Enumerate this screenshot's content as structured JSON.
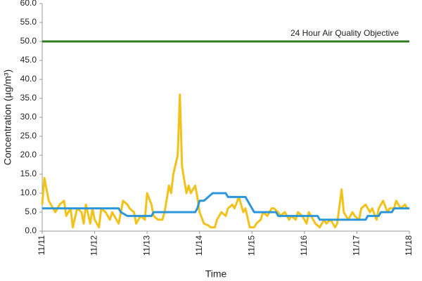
{
  "chart_data": {
    "type": "line",
    "xlabel": "Time",
    "ylabel": "Concentration (µg/m³)",
    "annotation": "24 Hour Air Quality Objective",
    "xlim": [
      0,
      168
    ],
    "xticks": [
      {
        "value": 0,
        "label": "11/11"
      },
      {
        "value": 24,
        "label": "11/12"
      },
      {
        "value": 48,
        "label": "11/13"
      },
      {
        "value": 72,
        "label": "11/14"
      },
      {
        "value": 96,
        "label": "11/15"
      },
      {
        "value": 120,
        "label": "11/16"
      },
      {
        "value": 144,
        "label": "11/17"
      },
      {
        "value": 168,
        "label": "11/18"
      }
    ],
    "ylim": [
      0,
      60
    ],
    "yticks": [
      {
        "value": 0,
        "label": "0.0"
      },
      {
        "value": 5,
        "label": "5.0"
      },
      {
        "value": 10,
        "label": "10.0"
      },
      {
        "value": 15,
        "label": "15.0"
      },
      {
        "value": 20,
        "label": "20.0"
      },
      {
        "value": 25,
        "label": "25.0"
      },
      {
        "value": 30,
        "label": "30.0"
      },
      {
        "value": 35,
        "label": "35.0"
      },
      {
        "value": 40,
        "label": "40.0"
      },
      {
        "value": 45,
        "label": "45.0"
      },
      {
        "value": 50,
        "label": "50.0"
      },
      {
        "value": 55,
        "label": "55.0"
      },
      {
        "value": 60,
        "label": "60.0"
      }
    ],
    "series": [
      {
        "color": "#2e7d1e",
        "x": [
          0,
          168
        ],
        "values": [
          50,
          50
        ]
      },
      {
        "color": "#f2c21b",
        "x": [
          0,
          1,
          3,
          5,
          6,
          8,
          10,
          11,
          13,
          14,
          16,
          18,
          19,
          20,
          22,
          23,
          24,
          26,
          27,
          29,
          31,
          32,
          34,
          35,
          37,
          39,
          40,
          42,
          43,
          45,
          47,
          48,
          50,
          51,
          53,
          55,
          56,
          58,
          59,
          60,
          62,
          63,
          64,
          66,
          67,
          68,
          70,
          71,
          72,
          74,
          76,
          77,
          79,
          80,
          82,
          84,
          85,
          87,
          88,
          90,
          92,
          93,
          95,
          97,
          98,
          100,
          101,
          103,
          105,
          106,
          108,
          109,
          111,
          113,
          114,
          116,
          117,
          119,
          121,
          122,
          124,
          125,
          127,
          129,
          130,
          132,
          134,
          135,
          137,
          138,
          140,
          142,
          143,
          145,
          146,
          148,
          150,
          151,
          153,
          154,
          156,
          158,
          159,
          161,
          162,
          164,
          166,
          167
        ],
        "values": [
          7,
          14,
          8,
          6,
          5,
          7,
          8,
          4,
          6,
          1,
          6,
          5,
          2,
          7,
          2,
          6,
          3,
          1,
          6,
          5,
          3,
          5,
          3,
          2,
          8,
          7,
          6,
          5,
          2,
          4,
          3,
          10,
          7,
          4,
          3,
          3,
          5,
          12,
          10,
          15,
          20,
          36,
          17,
          10,
          12,
          10,
          12,
          9,
          5,
          2,
          1.5,
          1,
          1,
          3,
          5,
          4,
          6,
          7,
          6,
          9,
          5,
          6,
          1,
          1,
          2,
          3,
          5,
          4,
          6,
          6,
          5,
          4,
          5,
          3,
          4,
          3,
          5,
          4,
          2,
          5,
          3,
          2,
          1,
          3,
          2,
          3,
          1,
          2,
          11,
          5,
          3,
          5,
          4,
          3,
          6,
          7,
          5,
          6,
          3,
          6,
          8,
          5,
          6,
          6,
          8,
          6,
          7,
          6
        ]
      },
      {
        "color": "#2b96d9",
        "x": [
          0,
          35,
          36,
          39,
          50,
          51,
          70,
          71,
          72,
          74,
          76,
          78,
          84,
          85,
          93,
          94,
          96,
          97,
          106,
          107,
          108,
          126,
          127,
          148,
          149,
          154,
          155,
          160,
          161,
          168
        ],
        "values": [
          6,
          6,
          5,
          4,
          4,
          5,
          5,
          6,
          8,
          8,
          9,
          10,
          10,
          9,
          9,
          8,
          6,
          5,
          5,
          5,
          4,
          4,
          3,
          3,
          4,
          4,
          5,
          5,
          6,
          6
        ]
      }
    ]
  }
}
